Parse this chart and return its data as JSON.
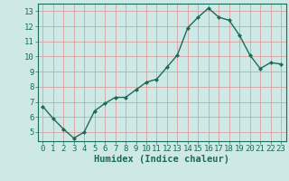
{
  "x": [
    0,
    1,
    2,
    3,
    4,
    5,
    6,
    7,
    8,
    9,
    10,
    11,
    12,
    13,
    14,
    15,
    16,
    17,
    18,
    19,
    20,
    21,
    22,
    23
  ],
  "y": [
    6.7,
    5.9,
    5.2,
    4.6,
    5.0,
    6.4,
    6.9,
    7.3,
    7.3,
    7.8,
    8.3,
    8.5,
    9.3,
    10.1,
    11.9,
    12.6,
    13.2,
    12.6,
    12.4,
    11.4,
    10.1,
    9.2,
    9.6,
    9.5
  ],
  "line_color": "#1a6b5a",
  "marker": "D",
  "marker_size": 2,
  "bg_color": "#cee9e5",
  "grid_color_major": "#d9a0a0",
  "grid_color_minor": "#cee9e5",
  "xlabel": "Humidex (Indice chaleur)",
  "xlim": [
    -0.5,
    23.5
  ],
  "ylim": [
    4.4,
    13.5
  ],
  "yticks": [
    5,
    6,
    7,
    8,
    9,
    10,
    11,
    12,
    13
  ],
  "xticks": [
    0,
    1,
    2,
    3,
    4,
    5,
    6,
    7,
    8,
    9,
    10,
    11,
    12,
    13,
    14,
    15,
    16,
    17,
    18,
    19,
    20,
    21,
    22,
    23
  ],
  "tick_color": "#1a6b5a",
  "label_fontsize": 7.5,
  "tick_fontsize": 6.5,
  "spine_color": "#1a6b5a"
}
